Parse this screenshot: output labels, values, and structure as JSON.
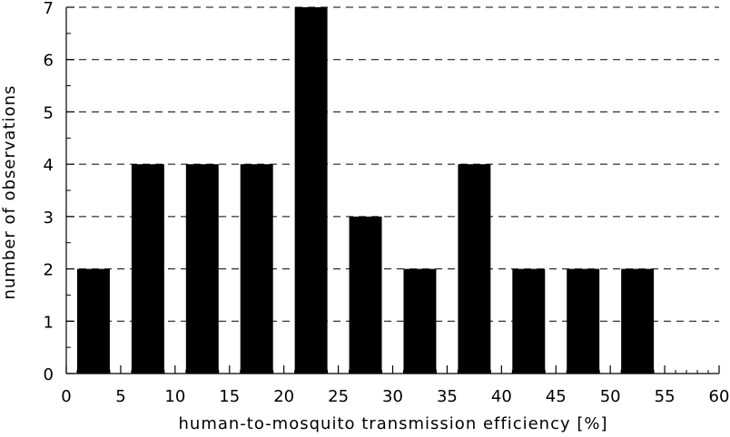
{
  "chart_data": {
    "type": "bar",
    "title": "",
    "xlabel": "human-to-mosquito transmission efficiency [%]",
    "ylabel": "number of observations",
    "xlim": [
      0,
      60
    ],
    "ylim": [
      0,
      7
    ],
    "x_ticks": [
      0,
      5,
      10,
      15,
      20,
      25,
      30,
      35,
      40,
      45,
      50,
      55,
      60
    ],
    "y_ticks": [
      0,
      1,
      2,
      3,
      4,
      5,
      6,
      7
    ],
    "grid": "horizontal dashed",
    "bar_color": "#000000",
    "bars": [
      {
        "x_from": 1,
        "x_to": 4,
        "value": 2
      },
      {
        "x_from": 6,
        "x_to": 9,
        "value": 4
      },
      {
        "x_from": 11,
        "x_to": 14,
        "value": 4
      },
      {
        "x_from": 16,
        "x_to": 19,
        "value": 4
      },
      {
        "x_from": 21,
        "x_to": 24,
        "value": 7
      },
      {
        "x_from": 26,
        "x_to": 29,
        "value": 3
      },
      {
        "x_from": 31,
        "x_to": 34,
        "value": 2
      },
      {
        "x_from": 36,
        "x_to": 39,
        "value": 4
      },
      {
        "x_from": 41,
        "x_to": 44,
        "value": 2
      },
      {
        "x_from": 46,
        "x_to": 49,
        "value": 2
      },
      {
        "x_from": 51,
        "x_to": 54,
        "value": 2
      }
    ]
  }
}
